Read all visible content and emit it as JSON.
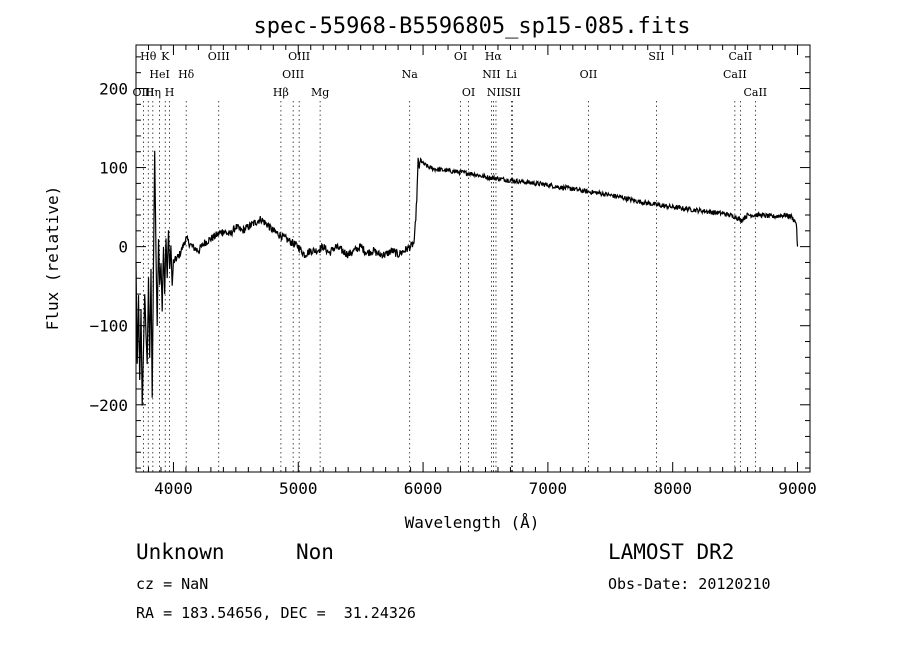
{
  "chart_data": {
    "type": "line",
    "title": "spec-55968-B5596805_sp15-085.fits",
    "xlabel": "Wavelength (Å)",
    "ylabel": "Flux (relative)",
    "xlim": [
      3700,
      9100
    ],
    "ylim": [
      -285,
      255
    ],
    "x_ticks": [
      4000,
      5000,
      6000,
      7000,
      8000,
      9000
    ],
    "y_ticks": [
      -200,
      -100,
      0,
      100,
      200
    ],
    "grid": false,
    "series": [
      {
        "x": [
          3700,
          3710,
          3720,
          3730,
          3740,
          3750,
          3760,
          3770,
          3780,
          3790,
          3800,
          3810,
          3820,
          3830,
          3840,
          3850,
          3860,
          3870,
          3880,
          3890,
          3900,
          3910,
          3920,
          3930,
          3940,
          3950,
          3960,
          3970,
          3980,
          3990,
          4000,
          4050,
          4100,
          4150,
          4200,
          4250,
          4300,
          4350,
          4400,
          4450,
          4500,
          4550,
          4600,
          4650,
          4700,
          4750,
          4800,
          4850,
          4900,
          4950,
          5000,
          5050,
          5100,
          5150,
          5200,
          5250,
          5300,
          5350,
          5400,
          5450,
          5500,
          5550,
          5600,
          5650,
          5700,
          5750,
          5800,
          5850,
          5900,
          5930,
          5950,
          5960,
          5970,
          5980,
          6000,
          6050,
          6100,
          6200,
          6300,
          6400,
          6500,
          6600,
          6700,
          6800,
          6900,
          7000,
          7100,
          7200,
          7300,
          7400,
          7500,
          7600,
          7700,
          7800,
          7900,
          8000,
          8100,
          8200,
          8300,
          8400,
          8500,
          8550,
          8600,
          8700,
          8800,
          8900,
          8950,
          8990,
          9000
        ],
        "y": [
          -20,
          -150,
          -60,
          -170,
          -80,
          -200,
          -130,
          -60,
          -110,
          -150,
          -40,
          -140,
          -30,
          -190,
          -20,
          120,
          -10,
          -100,
          10,
          -50,
          -20,
          -80,
          0,
          -60,
          10,
          -40,
          20,
          -30,
          0,
          -50,
          -20,
          -10,
          10,
          0,
          -5,
          5,
          10,
          15,
          20,
          15,
          25,
          20,
          25,
          30,
          35,
          28,
          20,
          15,
          10,
          5,
          0,
          -10,
          -5,
          -5,
          0,
          -8,
          0,
          -5,
          -10,
          -5,
          0,
          -8,
          -5,
          -10,
          -10,
          -5,
          -10,
          -5,
          0,
          5,
          60,
          110,
          100,
          110,
          105,
          100,
          98,
          96,
          94,
          92,
          88,
          86,
          84,
          82,
          80,
          78,
          75,
          73,
          70,
          68,
          65,
          62,
          58,
          55,
          52,
          50,
          48,
          46,
          44,
          42,
          38,
          33,
          40,
          40,
          38,
          40,
          38,
          30,
          0
        ]
      }
    ]
  },
  "spectral_lines": [
    {
      "label": "Hθ",
      "wl": 3798,
      "row": 1
    },
    {
      "label": "K",
      "wl": 3934,
      "row": 1
    },
    {
      "label": "HeI",
      "wl": 3889,
      "row": 2
    },
    {
      "label": "Hδ",
      "wl": 4102,
      "row": 2
    },
    {
      "label": "OIII",
      "wl": 3760,
      "row": 3
    },
    {
      "label": "Hη",
      "wl": 3835,
      "row": 3
    },
    {
      "label": "H",
      "wl": 3969,
      "row": 3
    },
    {
      "label": "OIII",
      "wl": 4363,
      "row": 1
    },
    {
      "label": "OIII",
      "wl": 5007,
      "row": 1
    },
    {
      "label": "OIII",
      "wl": 4959,
      "row": 2
    },
    {
      "label": "Hβ",
      "wl": 4861,
      "row": 3
    },
    {
      "label": "Mg",
      "wl": 5175,
      "row": 3
    },
    {
      "label": "Na",
      "wl": 5893,
      "row": 2
    },
    {
      "label": "OI",
      "wl": 6300,
      "row": 1
    },
    {
      "label": "OI",
      "wl": 6364,
      "row": 3
    },
    {
      "label": "Hα",
      "wl": 6563,
      "row": 1
    },
    {
      "label": "NII",
      "wl": 6548,
      "row": 2
    },
    {
      "label": "Li",
      "wl": 6708,
      "row": 2
    },
    {
      "label": "NII",
      "wl": 6584,
      "row": 3
    },
    {
      "label": "SII",
      "wl": 6717,
      "row": 3
    },
    {
      "label": "OII",
      "wl": 7325,
      "row": 2
    },
    {
      "label": "SII",
      "wl": 7870,
      "row": 1
    },
    {
      "label": "CaII",
      "wl": 8542,
      "row": 1
    },
    {
      "label": "CaII",
      "wl": 8498,
      "row": 2
    },
    {
      "label": "CaII",
      "wl": 8662,
      "row": 3
    }
  ],
  "info": {
    "class": "Unknown",
    "subclass": "Non",
    "survey": "LAMOST DR2",
    "cz": "cz = NaN",
    "obs_date": "Obs-Date: 20120210",
    "coords": "RA = 183.54656, DEC =  31.24326"
  }
}
